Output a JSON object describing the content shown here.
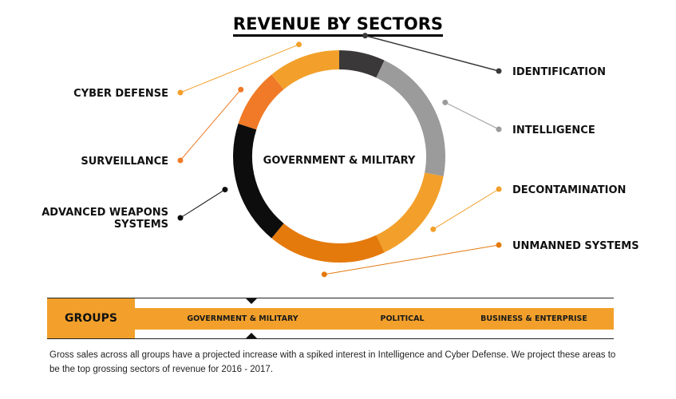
{
  "title": "REVENUE BY SECTORS",
  "chart_data": {
    "type": "pie",
    "center_label": "GOVERNMENT & MILITARY",
    "slices": [
      {
        "label": "IDENTIFICATION",
        "value": 7,
        "color": "#3a3838"
      },
      {
        "label": "INTELLIGENCE",
        "value": 21,
        "color": "#9b9b9b"
      },
      {
        "label": "DECONTAMINATION",
        "value": 15,
        "color": "#f2a02b"
      },
      {
        "label": "UNMANNED SYSTEMS",
        "value": 18,
        "color": "#e47a0c"
      },
      {
        "label": "ADVANCED WEAPONS SYSTEMS",
        "value": 19,
        "color": "#0d0d0d"
      },
      {
        "label": "SURVEILLANCE",
        "value": 9,
        "color": "#f07a27"
      },
      {
        "label": "CYBER DEFENSE",
        "value": 11,
        "color": "#f2a02b"
      }
    ]
  },
  "groups": {
    "label": "GROUPS",
    "tabs": [
      {
        "label": "GOVERNMENT & MILITARY",
        "selected": true
      },
      {
        "label": "POLITICAL",
        "selected": false
      },
      {
        "label": "BUSINESS & ENTERPRISE",
        "selected": false
      }
    ]
  },
  "footnote": "Gross sales across all groups have a projected increase with a spiked interest in Intelligence and Cyber Defense. We project these areas to be the top grossing sectors of revenue for 2016 - 2017."
}
